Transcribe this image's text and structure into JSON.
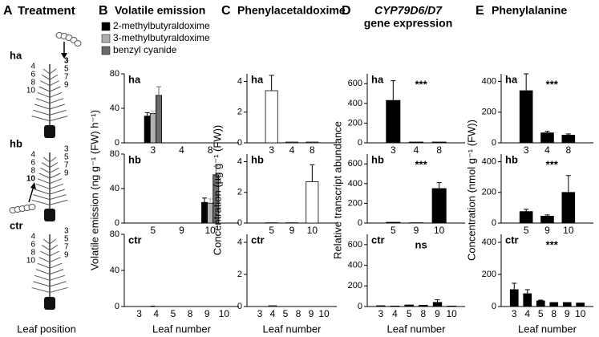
{
  "treatment": {
    "letter": "A",
    "title": "Treatment",
    "x_label": "Leaf position",
    "groups": [
      {
        "label": "ha",
        "left": [
          "4",
          "6",
          "8",
          "10"
        ],
        "right": [
          "3",
          "5",
          "7",
          "9"
        ]
      },
      {
        "label": "hb",
        "left": [
          "4",
          "6",
          "8",
          "10"
        ],
        "right": [
          "3",
          "5",
          "7",
          "9"
        ]
      },
      {
        "label": "ctr",
        "left": [
          "4",
          "6",
          "8",
          "10"
        ],
        "right": [
          "3",
          "5",
          "7",
          "9"
        ]
      }
    ]
  },
  "chart_data": [
    {
      "type": "bar",
      "letter": "B",
      "title": "Volatile emission",
      "y_label": "Volatile emission (ng g⁻¹ (FW) h⁻¹)",
      "x_label": "Leaf number",
      "series": [
        {
          "name": "2-methylbutyraldoxime",
          "color": "#000000"
        },
        {
          "name": "3-methylbutyraldoxime",
          "color": "#b0b0b0"
        },
        {
          "name": "benzyl cyanide",
          "color": "#6a6a6a"
        }
      ],
      "ylim": [
        0,
        80
      ],
      "yticks": [
        0,
        40,
        80
      ],
      "charts": [
        {
          "label": "ha",
          "categories": [
            "3",
            "4",
            "8"
          ],
          "values": [
            [
              31,
              0,
              0
            ],
            [
              34,
              0,
              0
            ],
            [
              55,
              0,
              0
            ]
          ],
          "errors": [
            [
              4,
              null,
              null
            ],
            [
              3,
              null,
              null
            ],
            [
              10,
              null,
              null
            ]
          ]
        },
        {
          "label": "hb",
          "categories": [
            "5",
            "9",
            "10"
          ],
          "values": [
            [
              0,
              0,
              24
            ],
            [
              0,
              0,
              23
            ],
            [
              0,
              0,
              56
            ]
          ],
          "errors": [
            [
              null,
              null,
              5
            ],
            [
              null,
              null,
              5
            ],
            [
              null,
              null,
              10
            ]
          ]
        },
        {
          "label": "ctr",
          "categories": [
            "3",
            "4",
            "5",
            "8",
            "9",
            "10"
          ],
          "values": [
            [
              0,
              0.5,
              0,
              0,
              0,
              0
            ],
            [
              0,
              0,
              0,
              0,
              0,
              0
            ],
            [
              0,
              0,
              0,
              0,
              0,
              0
            ]
          ],
          "errors": [
            [
              null,
              null,
              null,
              null,
              null,
              null
            ],
            [
              null,
              null,
              null,
              null,
              null,
              null
            ],
            [
              null,
              null,
              null,
              null,
              null,
              null
            ]
          ]
        }
      ]
    },
    {
      "type": "bar",
      "letter": "C",
      "title": "Phenylacetaldoxime",
      "y_label": "Concentration (µg g⁻¹ (FW))",
      "x_label": "Leaf number",
      "series": [
        {
          "color": "#ffffff"
        }
      ],
      "ylim": [
        0,
        4.5
      ],
      "yticks": [
        0,
        2,
        4
      ],
      "charts": [
        {
          "label": "ha",
          "categories": [
            "3",
            "4",
            "8"
          ],
          "values": [
            [
              3.4,
              0.05,
              0.05
            ]
          ],
          "errors": [
            [
              1.0,
              null,
              null
            ]
          ]
        },
        {
          "label": "hb",
          "categories": [
            "5",
            "9",
            "10"
          ],
          "values": [
            [
              0.02,
              0.02,
              2.7
            ]
          ],
          "errors": [
            [
              null,
              null,
              1.1
            ]
          ]
        },
        {
          "label": "ctr",
          "categories": [
            "3",
            "4",
            "5",
            "8",
            "9",
            "10"
          ],
          "values": [
            [
              0,
              0.05,
              0,
              0,
              0,
              0
            ]
          ],
          "errors": [
            [
              null,
              null,
              null,
              null,
              null,
              null
            ]
          ]
        }
      ]
    },
    {
      "type": "bar",
      "letter": "D",
      "title": [
        "CYP79D6/D7",
        "gene expression"
      ],
      "y_label": "Relative transcript abundance",
      "x_label": "Leaf number",
      "series": [
        {
          "color": "#000000"
        }
      ],
      "ylim": [
        0,
        700
      ],
      "yticks": [
        0,
        200,
        400,
        600
      ],
      "charts": [
        {
          "label": "ha",
          "annotation": "***",
          "categories": [
            "3",
            "4",
            "8"
          ],
          "values": [
            [
              430,
              8,
              8
            ]
          ],
          "errors": [
            [
              200,
              null,
              null
            ]
          ]
        },
        {
          "label": "hb",
          "annotation": "***",
          "categories": [
            "5",
            "9",
            "10"
          ],
          "values": [
            [
              8,
              3,
              350
            ]
          ],
          "errors": [
            [
              null,
              null,
              60
            ]
          ]
        },
        {
          "label": "ctr",
          "annotation": "ns",
          "categories": [
            "3",
            "4",
            "5",
            "8",
            "9",
            "10"
          ],
          "values": [
            [
              8,
              5,
              15,
              12,
              40,
              5
            ]
          ],
          "errors": [
            [
              null,
              null,
              null,
              null,
              25,
              null
            ]
          ]
        }
      ]
    },
    {
      "type": "bar",
      "letter": "E",
      "title": "Phenylalanine",
      "y_label": "Concentration (nmol g⁻¹ (FW))",
      "x_label": "Leaf number",
      "series": [
        {
          "color": "#000000"
        }
      ],
      "ylim": [
        0,
        450
      ],
      "yticks": [
        0,
        200,
        400
      ],
      "charts": [
        {
          "label": "ha",
          "annotation": "***",
          "categories": [
            "3",
            "4",
            "8"
          ],
          "values": [
            [
              340,
              65,
              50
            ]
          ],
          "errors": [
            [
              110,
              10,
              8
            ]
          ]
        },
        {
          "label": "hb",
          "annotation": "***",
          "categories": [
            "5",
            "9",
            "10"
          ],
          "values": [
            [
              75,
              45,
              200
            ]
          ],
          "errors": [
            [
              15,
              8,
              110
            ]
          ]
        },
        {
          "label": "ctr",
          "annotation": "***",
          "categories": [
            "3",
            "4",
            "5",
            "8",
            "9",
            "10"
          ],
          "values": [
            [
              105,
              80,
              35,
              25,
              25,
              22
            ]
          ],
          "errors": [
            [
              40,
              25,
              5,
              null,
              null,
              null
            ]
          ]
        }
      ]
    }
  ]
}
